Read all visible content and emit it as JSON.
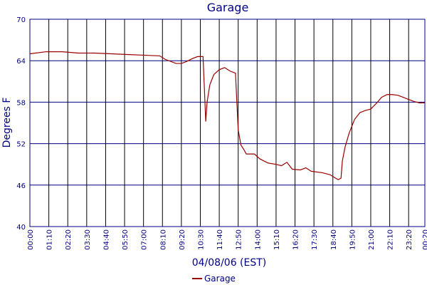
{
  "chart_data": {
    "type": "line",
    "title": "Garage",
    "x_label": "04/08/06 (EST)",
    "y_label": "Degrees F",
    "x": [
      0,
      60,
      120,
      180,
      240,
      300,
      360,
      420,
      480,
      500,
      540,
      560,
      580,
      600,
      620,
      640,
      645,
      650,
      655,
      665,
      680,
      700,
      720,
      740,
      760,
      765,
      770,
      780,
      790,
      800,
      830,
      850,
      880,
      910,
      930,
      950,
      970,
      1000,
      1020,
      1040,
      1080,
      1110,
      1130,
      1140,
      1150,
      1155,
      1165,
      1180,
      1200,
      1220,
      1240,
      1260,
      1280,
      1300,
      1320,
      1340,
      1360,
      1380,
      1400,
      1420,
      1440,
      1460
    ],
    "series": [
      {
        "name": "Garage",
        "color": "#990000",
        "values": [
          65.0,
          65.3,
          65.3,
          65.1,
          65.1,
          65.0,
          64.9,
          64.8,
          64.7,
          64.2,
          63.6,
          63.6,
          63.9,
          64.3,
          64.6,
          64.6,
          60.0,
          55.2,
          58.0,
          60.5,
          62.0,
          62.7,
          63.0,
          62.5,
          62.2,
          58.0,
          54.0,
          51.8,
          51.2,
          50.5,
          50.5,
          49.8,
          49.2,
          49.0,
          48.8,
          49.3,
          48.3,
          48.2,
          48.5,
          48.0,
          47.8,
          47.5,
          47.0,
          46.8,
          47.0,
          49.5,
          51.5,
          53.5,
          55.5,
          56.5,
          56.8,
          57.0,
          57.8,
          58.7,
          59.1,
          59.1,
          59.0,
          58.7,
          58.4,
          58.1,
          57.9,
          57.9
        ]
      }
    ],
    "xlim": [
      0,
      1460
    ],
    "xticks": [
      {
        "value": 0,
        "label": "00:00"
      },
      {
        "value": 70,
        "label": "01:10"
      },
      {
        "value": 140,
        "label": "02:20"
      },
      {
        "value": 210,
        "label": "03:30"
      },
      {
        "value": 280,
        "label": "04:40"
      },
      {
        "value": 350,
        "label": "05:50"
      },
      {
        "value": 420,
        "label": "07:00"
      },
      {
        "value": 490,
        "label": "08:10"
      },
      {
        "value": 560,
        "label": "09:20"
      },
      {
        "value": 630,
        "label": "10:30"
      },
      {
        "value": 700,
        "label": "11:40"
      },
      {
        "value": 770,
        "label": "12:50"
      },
      {
        "value": 840,
        "label": "14:00"
      },
      {
        "value": 910,
        "label": "15:10"
      },
      {
        "value": 980,
        "label": "16:20"
      },
      {
        "value": 1050,
        "label": "17:30"
      },
      {
        "value": 1120,
        "label": "18:40"
      },
      {
        "value": 1190,
        "label": "19:50"
      },
      {
        "value": 1260,
        "label": "21:00"
      },
      {
        "value": 1330,
        "label": "22:10"
      },
      {
        "value": 1400,
        "label": "23:20"
      },
      {
        "value": 1460,
        "label": "00:20"
      }
    ],
    "ylim": [
      40,
      70
    ],
    "yticks": [
      40,
      46,
      52,
      58,
      64,
      70
    ],
    "grid": true,
    "legend": "bottom"
  }
}
